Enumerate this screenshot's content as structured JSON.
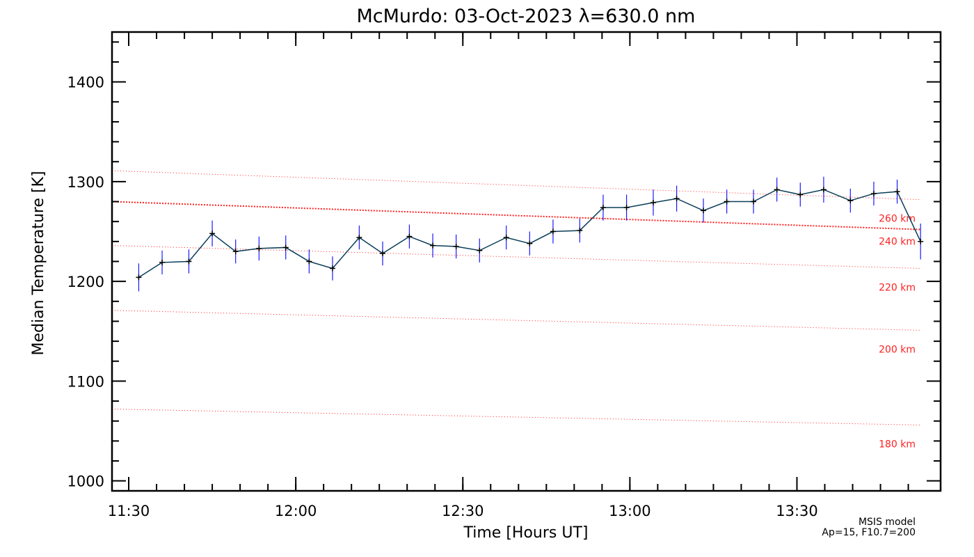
{
  "chart_data": {
    "type": "line",
    "title": "McMurdo: 03-Oct-2023 λ=630.0 nm",
    "xlabel": "Time [Hours UT]",
    "ylabel": "Median Temperature [K]",
    "xlim": [
      11.45,
      13.93
    ],
    "ylim": [
      990,
      1450
    ],
    "x_ticks": [
      {
        "value": 11.5,
        "label": "11:30"
      },
      {
        "value": 12.0,
        "label": "12:00"
      },
      {
        "value": 12.5,
        "label": "12:30"
      },
      {
        "value": 13.0,
        "label": "13:00"
      },
      {
        "value": 13.5,
        "label": "13:30"
      }
    ],
    "y_ticks": [
      {
        "value": 1000,
        "label": "1000"
      },
      {
        "value": 1100,
        "label": "1100"
      },
      {
        "value": 1200,
        "label": "1200"
      },
      {
        "value": 1300,
        "label": "1300"
      },
      {
        "value": 1400,
        "label": "1400"
      }
    ],
    "series": [
      {
        "name": "Median Temperature",
        "color": "#0a3d5a",
        "error_color": "#1a1aff",
        "x": [
          11.53,
          11.6,
          11.68,
          11.75,
          11.82,
          11.89,
          11.97,
          12.04,
          12.11,
          12.19,
          12.26,
          12.34,
          12.41,
          12.48,
          12.55,
          12.63,
          12.7,
          12.77,
          12.85,
          12.92,
          12.99,
          13.07,
          13.14,
          13.22,
          13.29,
          13.37,
          13.44,
          13.51,
          13.58,
          13.66,
          13.73,
          13.8,
          13.87
        ],
        "values": [
          1204,
          1219,
          1220,
          1248,
          1230,
          1233,
          1234,
          1220,
          1213,
          1244,
          1228,
          1245,
          1236,
          1235,
          1231,
          1244,
          1238,
          1250,
          1251,
          1274,
          1274,
          1279,
          1283,
          1271,
          1280,
          1280,
          1292,
          1287,
          1292,
          1281,
          1288,
          1290,
          1240
        ],
        "errors": [
          14,
          12,
          12,
          13,
          12,
          12,
          12,
          12,
          12,
          12,
          12,
          12,
          12,
          12,
          12,
          12,
          12,
          12,
          12,
          13,
          13,
          13,
          13,
          12,
          12,
          12,
          12,
          12,
          13,
          12,
          12,
          12,
          18
        ]
      }
    ],
    "msis_reference": {
      "color": "#ff2020",
      "lines": [
        {
          "label": "180 km",
          "start": 1072,
          "end": 1056,
          "bold": false
        },
        {
          "label": "200 km",
          "start": 1171,
          "end": 1151,
          "bold": false
        },
        {
          "label": "220 km",
          "start": 1236,
          "end": 1213,
          "bold": false
        },
        {
          "label": "240 km",
          "start": 1280,
          "end": 1252,
          "bold": true
        },
        {
          "label": "260 km",
          "start": 1311,
          "end": 1282,
          "bold": false
        }
      ],
      "x_start": 11.45,
      "x_end": 13.87
    },
    "notes": [
      "MSIS model",
      "Ap=15, F10.7=200"
    ]
  }
}
